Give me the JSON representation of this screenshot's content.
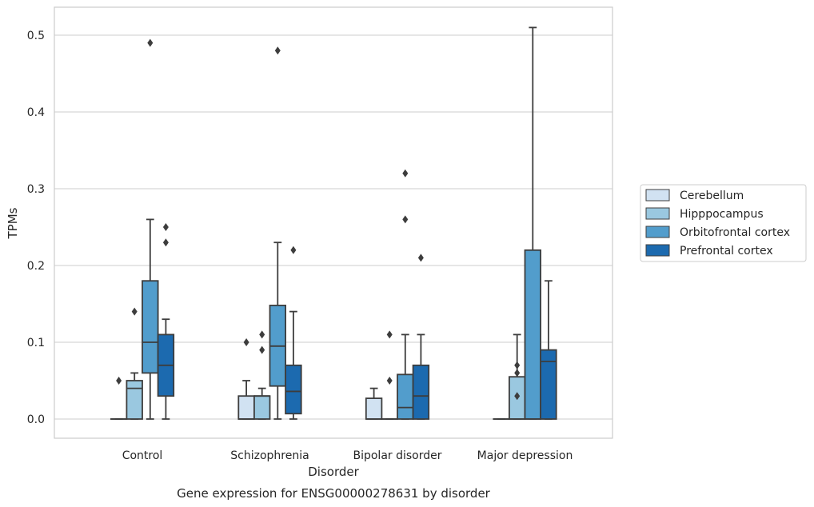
{
  "chart_data": {
    "type": "box",
    "title": "",
    "caption": "Gene expression for ENSG00000278631 by disorder",
    "xlabel": "Disorder",
    "ylabel": "TPMs",
    "ylim": [
      -0.025,
      0.537
    ],
    "yticks": [
      0.0,
      0.1,
      0.2,
      0.3,
      0.4,
      0.5
    ],
    "ytick_labels": [
      "0.0",
      "0.1",
      "0.2",
      "0.3",
      "0.4",
      "0.5"
    ],
    "grid": "horizontal",
    "legend_position": "right",
    "categories": [
      "Control",
      "Schizophrenia",
      "Bipolar disorder",
      "Major depression"
    ],
    "series": [
      {
        "name": "Cerebellum",
        "color": "#d1e2f2",
        "boxes": [
          {
            "whisker_low": 0.0,
            "q1": 0.0,
            "median": 0.0,
            "q3": 0.0,
            "whisker_high": 0.0,
            "outliers": [
              0.05
            ]
          },
          {
            "whisker_low": 0.0,
            "q1": 0.0,
            "median": 0.0,
            "q3": 0.03,
            "whisker_high": 0.05,
            "outliers": [
              0.1
            ]
          },
          {
            "whisker_low": 0.0,
            "q1": 0.0,
            "median": 0.0,
            "q3": 0.027,
            "whisker_high": 0.04,
            "outliers": []
          },
          {
            "whisker_low": 0.0,
            "q1": 0.0,
            "median": 0.0,
            "q3": 0.0,
            "whisker_high": 0.0,
            "outliers": []
          }
        ]
      },
      {
        "name": "Hipppocampus",
        "color": "#9ac8e0",
        "boxes": [
          {
            "whisker_low": 0.0,
            "q1": 0.0,
            "median": 0.04,
            "q3": 0.05,
            "whisker_high": 0.06,
            "outliers": [
              0.14
            ]
          },
          {
            "whisker_low": 0.0,
            "q1": 0.0,
            "median": 0.03,
            "q3": 0.03,
            "whisker_high": 0.04,
            "outliers": [
              0.09,
              0.11
            ]
          },
          {
            "whisker_low": 0.0,
            "q1": 0.0,
            "median": 0.0,
            "q3": 0.0,
            "whisker_high": 0.0,
            "outliers": [
              0.05,
              0.11
            ]
          },
          {
            "whisker_low": 0.0,
            "q1": 0.0,
            "median": 0.0,
            "q3": 0.055,
            "whisker_high": 0.11,
            "outliers": [
              0.03,
              0.06,
              0.07
            ]
          }
        ]
      },
      {
        "name": "Orbitofrontal cortex",
        "color": "#529dcc",
        "boxes": [
          {
            "whisker_low": 0.0,
            "q1": 0.06,
            "median": 0.1,
            "q3": 0.18,
            "whisker_high": 0.26,
            "outliers": [
              0.49
            ]
          },
          {
            "whisker_low": 0.0,
            "q1": 0.043,
            "median": 0.095,
            "q3": 0.148,
            "whisker_high": 0.23,
            "outliers": [
              0.48
            ]
          },
          {
            "whisker_low": 0.0,
            "q1": 0.0,
            "median": 0.015,
            "q3": 0.058,
            "whisker_high": 0.11,
            "outliers": [
              0.26,
              0.32
            ]
          },
          {
            "whisker_low": 0.0,
            "q1": 0.0,
            "median": 0.0,
            "q3": 0.22,
            "whisker_high": 0.51,
            "outliers": []
          }
        ]
      },
      {
        "name": "Prefrontal cortex",
        "color": "#1c6aaf",
        "boxes": [
          {
            "whisker_low": 0.0,
            "q1": 0.03,
            "median": 0.07,
            "q3": 0.11,
            "whisker_high": 0.13,
            "outliers": [
              0.23,
              0.25
            ]
          },
          {
            "whisker_low": 0.0,
            "q1": 0.007,
            "median": 0.036,
            "q3": 0.07,
            "whisker_high": 0.14,
            "outliers": [
              0.22
            ]
          },
          {
            "whisker_low": 0.0,
            "q1": 0.0,
            "median": 0.03,
            "q3": 0.07,
            "whisker_high": 0.11,
            "outliers": [
              0.21
            ]
          },
          {
            "whisker_low": 0.0,
            "q1": 0.0,
            "median": 0.075,
            "q3": 0.09,
            "whisker_high": 0.18,
            "outliers": []
          }
        ]
      }
    ]
  }
}
